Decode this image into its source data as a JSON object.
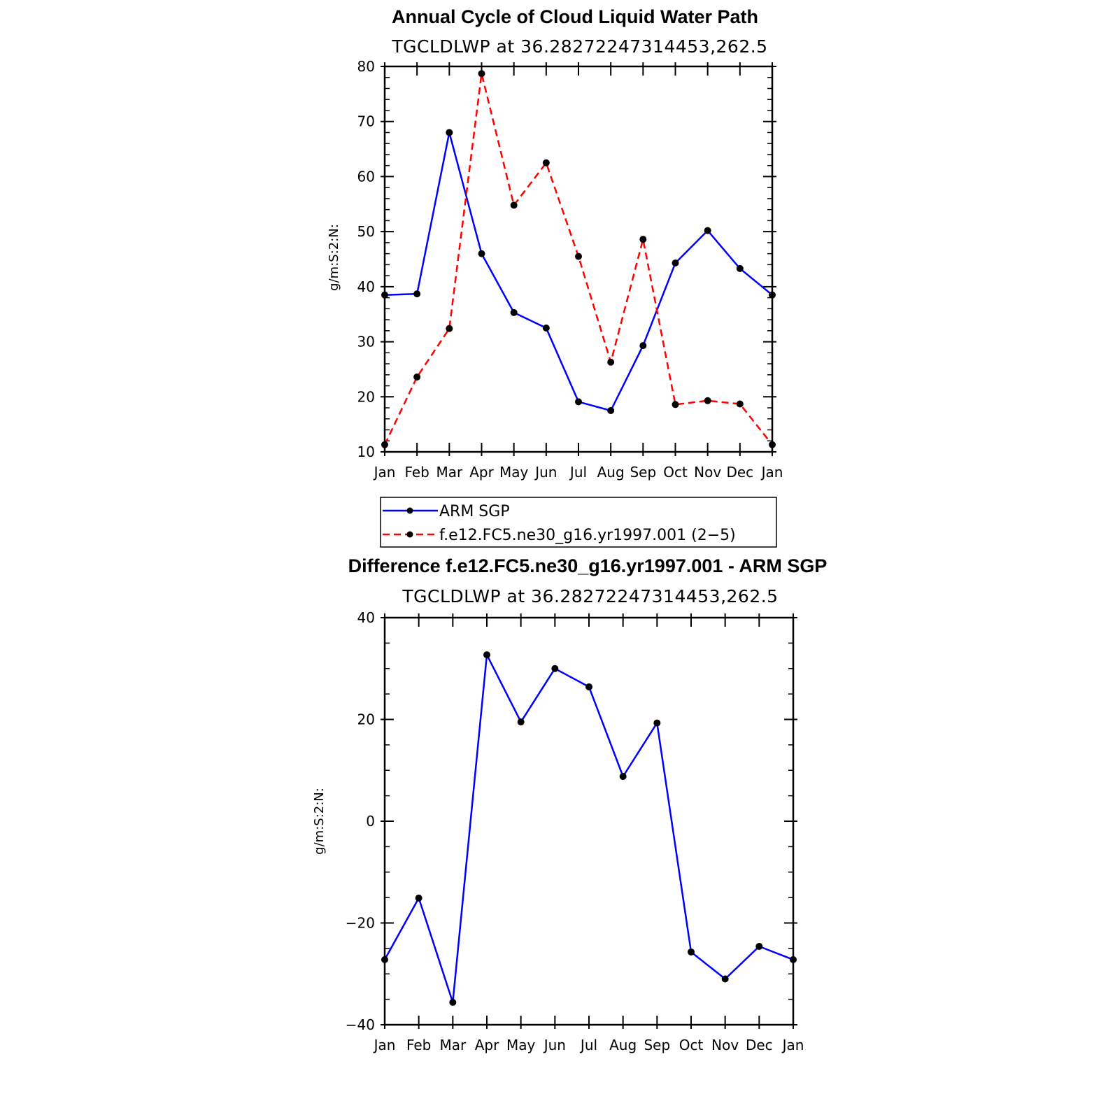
{
  "chart_data": [
    {
      "type": "line",
      "title": "Annual Cycle of Cloud Liquid Water Path",
      "subtitle": "TGCLDLWP  at  36.28272247314453,262.5",
      "ylabel": "g/m:S:2:N:",
      "xlabel": "",
      "categories": [
        "Jan",
        "Feb",
        "Mar",
        "Apr",
        "May",
        "Jun",
        "Jul",
        "Aug",
        "Sep",
        "Oct",
        "Nov",
        "Dec",
        "Jan"
      ],
      "ylim": [
        10,
        80
      ],
      "yticks": [
        10,
        20,
        30,
        40,
        50,
        60,
        70,
        80
      ],
      "ytick_labels": [
        "10",
        "20",
        "30",
        "40",
        "50",
        "60",
        "70",
        "80"
      ],
      "legend_position": "bottom",
      "series": [
        {
          "name": "ARM SGP",
          "color": "#0000ff",
          "dash": "solid",
          "values": [
            38.5,
            38.7,
            68.0,
            46.0,
            35.3,
            32.5,
            19.1,
            17.5,
            29.3,
            44.3,
            50.2,
            43.3,
            38.5
          ]
        },
        {
          "name": "f.e12.FC5.ne30_g16.yr1997.001 (2−5)",
          "color": "#ff0000",
          "dash": "dashed",
          "values": [
            11.3,
            23.6,
            32.4,
            78.7,
            54.8,
            62.5,
            45.5,
            26.3,
            48.6,
            18.6,
            19.3,
            18.7,
            11.3
          ]
        }
      ]
    },
    {
      "type": "line",
      "title": "Difference f.e12.FC5.ne30_g16.yr1997.001 - ARM SGP",
      "subtitle": "TGCLDLWP  at  36.28272247314453,262.5",
      "ylabel": "g/m:S:2:N:",
      "xlabel": "",
      "categories": [
        "Jan",
        "Feb",
        "Mar",
        "Apr",
        "May",
        "Jun",
        "Jul",
        "Aug",
        "Sep",
        "Oct",
        "Nov",
        "Dec",
        "Jan"
      ],
      "ylim": [
        -40,
        40
      ],
      "yticks": [
        -40,
        -20,
        0,
        20,
        40
      ],
      "ytick_labels": [
        "−40",
        "−20",
        "0",
        "20",
        "40"
      ],
      "series": [
        {
          "color": "#0000ff",
          "dash": "solid",
          "values": [
            -27.2,
            -15.1,
            -35.6,
            32.7,
            19.5,
            30.0,
            26.4,
            8.8,
            19.3,
            -25.7,
            -31.0,
            -24.6,
            -27.2
          ]
        }
      ]
    }
  ]
}
